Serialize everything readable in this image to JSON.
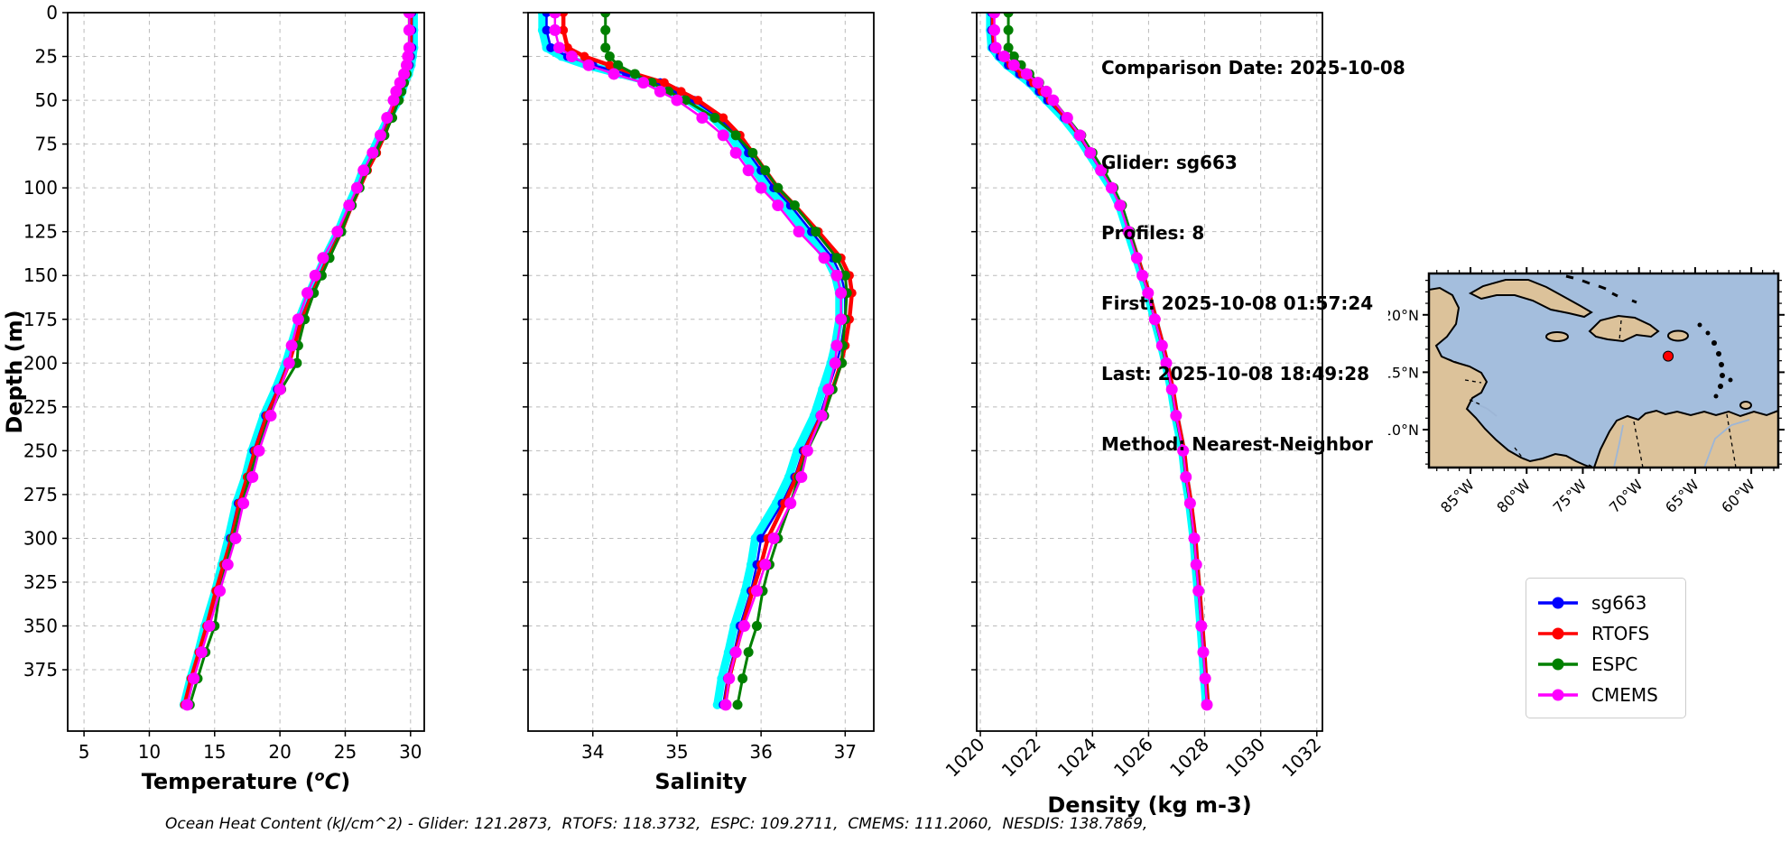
{
  "info_panel": {
    "comparison_date": "Comparison Date: 2025-10-08",
    "glider": "Glider: sg663",
    "profiles": "Profiles: 8",
    "first": "First: 2025-10-08 01:57:24",
    "last": "Last: 2025-10-08 18:49:28",
    "method": "Method: Nearest-Neighbor"
  },
  "caption": "Ocean Heat Content (kJ/cm^2) - Glider: 121.2873,  RTOFS: 118.3732,  ESPC: 109.2711,  CMEMS: 111.2060,  NESDIS: 138.7869,",
  "legend": {
    "items": [
      {
        "label": "sg663",
        "color": "#0000ff"
      },
      {
        "label": "RTOFS",
        "color": "#ff0000"
      },
      {
        "label": "ESPC",
        "color": "#008000"
      },
      {
        "label": "CMEMS",
        "color": "#ff00ff"
      }
    ]
  },
  "map": {
    "ocean_color": "#a4bedd",
    "land_color": "#dcc29a",
    "marker_color": "#ff0000",
    "extent": {
      "lon_min": -88.7,
      "lon_max": -57.6,
      "lat_min": 6.7,
      "lat_max": 23.6
    },
    "x_tick_lons": [
      -85,
      -80,
      -75,
      -70,
      -65,
      -60
    ],
    "x_tick_labels": [
      "85°W",
      "80°W",
      "75°W",
      "70°W",
      "65°W",
      "60°W"
    ],
    "y_tick_lats": [
      20,
      15,
      10
    ],
    "y_tick_labels": [
      "20°N",
      "15°N",
      "10°N"
    ],
    "marker_lon": -67.4,
    "marker_lat": 16.4
  },
  "chart_data": [
    {
      "type": "line",
      "id": "temperature",
      "xlabel_rich": [
        "Temperature (",
        "o",
        "C",
        ")"
      ],
      "xlabel": "Temperature (°C)",
      "ylabel": "Depth (m)",
      "xlim": [
        3.75,
        31.05
      ],
      "ylim": [
        0,
        410
      ],
      "y_inverted": true,
      "grid": true,
      "xticks": [
        5,
        10,
        15,
        20,
        25,
        30
      ],
      "yticks": [
        0,
        25,
        50,
        75,
        100,
        125,
        150,
        175,
        200,
        225,
        250,
        275,
        300,
        325,
        350,
        375
      ],
      "show_ytick_labels": true,
      "rotate_xtick_labels": false,
      "depths": [
        0,
        10,
        20,
        25,
        30,
        35,
        40,
        45,
        50,
        60,
        70,
        80,
        90,
        100,
        110,
        125,
        140,
        150,
        160,
        175,
        190,
        200,
        215,
        230,
        250,
        265,
        280,
        300,
        315,
        330,
        350,
        365,
        380,
        395
      ],
      "series": [
        {
          "name": "glider-raw",
          "color": "#00ffff",
          "lw": 9,
          "mr": 5,
          "in_legend": false,
          "values": [
            30.25,
            30.25,
            30.25,
            30.15,
            30.05,
            29.85,
            29.55,
            29.35,
            29.1,
            28.3,
            27.65,
            27.05,
            26.35,
            25.85,
            25.25,
            24.45,
            23.45,
            22.85,
            22.25,
            21.45,
            20.85,
            20.45,
            19.65,
            18.75,
            17.85,
            17.35,
            16.65,
            16.05,
            15.55,
            15.05,
            14.25,
            13.75,
            13.15,
            12.65
          ]
        },
        {
          "name": "sg663",
          "color": "#0000ff",
          "lw": 2.5,
          "mr": 5,
          "in_legend": true,
          "values": [
            30.1,
            30.1,
            30.1,
            30.0,
            29.9,
            29.7,
            29.4,
            29.2,
            29.0,
            28.4,
            27.8,
            27.2,
            26.5,
            26.0,
            25.4,
            24.6,
            23.6,
            23.0,
            22.4,
            21.6,
            21.0,
            20.6,
            19.8,
            18.9,
            18.0,
            17.5,
            16.8,
            16.2,
            15.7,
            15.2,
            14.4,
            13.9,
            13.3,
            12.8
          ]
        },
        {
          "name": "RTOFS",
          "color": "#ff0000",
          "lw": 4.5,
          "mr": 5,
          "in_legend": true,
          "values": [
            30.0,
            30.0,
            30.0,
            29.9,
            29.8,
            29.6,
            29.3,
            29.1,
            28.9,
            28.5,
            28.0,
            27.4,
            26.7,
            26.1,
            25.5,
            24.7,
            23.7,
            23.1,
            22.5,
            21.7,
            21.1,
            20.7,
            19.9,
            19.0,
            18.1,
            17.5,
            16.9,
            16.3,
            15.7,
            15.1,
            14.4,
            13.8,
            13.2,
            12.7
          ]
        },
        {
          "name": "ESPC",
          "color": "#008000",
          "lw": 3,
          "mr": 5.5,
          "in_legend": true,
          "values": [
            29.9,
            29.9,
            29.9,
            29.9,
            29.8,
            29.7,
            29.5,
            29.3,
            29.1,
            28.6,
            28.0,
            27.3,
            26.6,
            26.1,
            25.5,
            24.7,
            23.8,
            23.2,
            22.6,
            21.9,
            21.4,
            21.3,
            20.1,
            19.2,
            18.3,
            17.7,
            17.1,
            16.4,
            15.9,
            15.4,
            15.0,
            14.3,
            13.7,
            13.1
          ]
        },
        {
          "name": "CMEMS",
          "color": "#ff00ff",
          "lw": 2.5,
          "mr": 6.5,
          "in_legend": true,
          "values": [
            29.9,
            29.9,
            29.9,
            29.8,
            29.7,
            29.5,
            29.2,
            28.9,
            28.7,
            28.2,
            27.7,
            27.1,
            26.4,
            25.9,
            25.3,
            24.4,
            23.3,
            22.7,
            22.1,
            21.4,
            20.9,
            20.7,
            20.0,
            19.3,
            18.4,
            17.9,
            17.2,
            16.6,
            16.0,
            15.4,
            14.6,
            14.0,
            13.4,
            12.9
          ]
        }
      ]
    },
    {
      "type": "line",
      "id": "salinity",
      "xlabel": "Salinity",
      "ylabel": "",
      "xlim": [
        33.23,
        37.34
      ],
      "ylim": [
        0,
        410
      ],
      "y_inverted": true,
      "grid": true,
      "xticks": [
        34,
        35,
        36,
        37
      ],
      "yticks": [
        0,
        25,
        50,
        75,
        100,
        125,
        150,
        175,
        200,
        225,
        250,
        275,
        300,
        325,
        350,
        375
      ],
      "show_ytick_labels": false,
      "rotate_xtick_labels": false,
      "depths": [
        0,
        10,
        20,
        25,
        30,
        35,
        40,
        45,
        50,
        60,
        70,
        80,
        90,
        100,
        110,
        125,
        140,
        150,
        160,
        175,
        190,
        200,
        215,
        230,
        250,
        265,
        280,
        300,
        315,
        330,
        350,
        365,
        380,
        395
      ],
      "series": [
        {
          "name": "glider-raw",
          "color": "#00ffff",
          "lw": 9,
          "mr": 5,
          "in_legend": false,
          "values": [
            33.4,
            33.4,
            33.45,
            33.63,
            33.93,
            34.33,
            34.73,
            34.93,
            35.13,
            35.43,
            35.63,
            35.78,
            35.93,
            36.08,
            36.28,
            36.53,
            36.78,
            36.88,
            36.93,
            36.93,
            36.88,
            36.83,
            36.73,
            36.63,
            36.43,
            36.33,
            36.18,
            35.93,
            35.88,
            35.81,
            35.68,
            35.61,
            35.53,
            35.48
          ]
        },
        {
          "name": "sg663",
          "color": "#0000ff",
          "lw": 2.5,
          "mr": 5,
          "in_legend": true,
          "values": [
            33.45,
            33.45,
            33.5,
            33.7,
            34.0,
            34.4,
            34.8,
            35.0,
            35.2,
            35.5,
            35.7,
            35.85,
            36.0,
            36.15,
            36.35,
            36.6,
            36.85,
            36.95,
            37.0,
            37.0,
            36.95,
            36.9,
            36.8,
            36.7,
            36.5,
            36.4,
            36.25,
            36.0,
            35.95,
            35.88,
            35.75,
            35.68,
            35.6,
            35.55
          ]
        },
        {
          "name": "RTOFS",
          "color": "#ff0000",
          "lw": 4.5,
          "mr": 5,
          "in_legend": true,
          "values": [
            33.65,
            33.65,
            33.7,
            33.9,
            34.2,
            34.5,
            34.85,
            35.05,
            35.25,
            35.55,
            35.75,
            35.9,
            36.05,
            36.2,
            36.4,
            36.68,
            36.95,
            37.05,
            37.08,
            37.05,
            37.0,
            36.95,
            36.85,
            36.72,
            36.52,
            36.42,
            36.28,
            36.08,
            36.0,
            35.9,
            35.78,
            35.7,
            35.62,
            35.57
          ]
        },
        {
          "name": "ESPC",
          "color": "#008000",
          "lw": 3,
          "mr": 5.5,
          "in_legend": true,
          "values": [
            34.15,
            34.15,
            34.15,
            34.2,
            34.3,
            34.5,
            34.7,
            34.9,
            35.1,
            35.45,
            35.7,
            35.9,
            36.05,
            36.2,
            36.4,
            36.65,
            36.9,
            37.0,
            37.02,
            37.0,
            36.97,
            36.96,
            36.85,
            36.75,
            36.55,
            36.45,
            36.35,
            36.2,
            36.1,
            36.02,
            35.95,
            35.85,
            35.78,
            35.72
          ]
        },
        {
          "name": "CMEMS",
          "color": "#ff00ff",
          "lw": 2.5,
          "mr": 6.5,
          "in_legend": true,
          "values": [
            33.55,
            33.55,
            33.6,
            33.75,
            33.95,
            34.25,
            34.6,
            34.8,
            35.0,
            35.3,
            35.55,
            35.7,
            35.85,
            36.0,
            36.2,
            36.45,
            36.75,
            36.9,
            36.95,
            36.95,
            36.9,
            36.88,
            36.8,
            36.72,
            36.55,
            36.48,
            36.35,
            36.15,
            36.05,
            35.95,
            35.8,
            35.7,
            35.62,
            35.58
          ]
        }
      ]
    },
    {
      "type": "line",
      "id": "density",
      "xlabel": "Density (kg m-3)",
      "ylabel": "",
      "xlim": [
        1019.87,
        1032.2
      ],
      "ylim": [
        0,
        410
      ],
      "y_inverted": true,
      "grid": true,
      "xticks": [
        1020,
        1022,
        1024,
        1026,
        1028,
        1030,
        1032
      ],
      "yticks": [
        0,
        25,
        50,
        75,
        100,
        125,
        150,
        175,
        200,
        225,
        250,
        275,
        300,
        325,
        350,
        375
      ],
      "show_ytick_labels": false,
      "rotate_xtick_labels": true,
      "depths": [
        0,
        10,
        20,
        25,
        30,
        35,
        40,
        45,
        50,
        60,
        70,
        80,
        90,
        100,
        110,
        125,
        140,
        150,
        160,
        175,
        190,
        200,
        215,
        230,
        250,
        265,
        280,
        300,
        315,
        330,
        350,
        365,
        380,
        395
      ],
      "series": [
        {
          "name": "glider-raw",
          "color": "#00ffff",
          "lw": 9,
          "mr": 5,
          "in_legend": false,
          "values": [
            1020.35,
            1020.35,
            1020.4,
            1020.65,
            1020.95,
            1021.35,
            1021.75,
            1022.05,
            1022.35,
            1022.95,
            1023.45,
            1023.85,
            1024.25,
            1024.65,
            1024.95,
            1025.25,
            1025.55,
            1025.75,
            1025.95,
            1026.2,
            1026.45,
            1026.6,
            1026.8,
            1026.95,
            1027.2,
            1027.3,
            1027.45,
            1027.6,
            1027.67,
            1027.75,
            1027.85,
            1027.92,
            1027.98,
            1028.05
          ]
        },
        {
          "name": "sg663",
          "color": "#0000ff",
          "lw": 2.5,
          "mr": 5,
          "in_legend": true,
          "values": [
            1020.4,
            1020.4,
            1020.45,
            1020.7,
            1021.0,
            1021.4,
            1021.8,
            1022.1,
            1022.4,
            1023.0,
            1023.5,
            1023.9,
            1024.3,
            1024.7,
            1025.0,
            1025.3,
            1025.6,
            1025.8,
            1026.0,
            1026.25,
            1026.5,
            1026.65,
            1026.85,
            1027.0,
            1027.25,
            1027.35,
            1027.5,
            1027.65,
            1027.72,
            1027.8,
            1027.9,
            1027.97,
            1028.03,
            1028.1
          ]
        },
        {
          "name": "RTOFS",
          "color": "#ff0000",
          "lw": 4.5,
          "mr": 5,
          "in_legend": true,
          "values": [
            1020.45,
            1020.45,
            1020.5,
            1020.8,
            1021.1,
            1021.5,
            1021.9,
            1022.2,
            1022.5,
            1023.05,
            1023.55,
            1023.95,
            1024.35,
            1024.72,
            1025.02,
            1025.32,
            1025.62,
            1025.82,
            1026.02,
            1026.27,
            1026.52,
            1026.67,
            1026.87,
            1027.02,
            1027.27,
            1027.37,
            1027.52,
            1027.67,
            1027.74,
            1027.82,
            1027.92,
            1027.99,
            1028.05,
            1028.12
          ]
        },
        {
          "name": "ESPC",
          "color": "#008000",
          "lw": 3,
          "mr": 5.5,
          "in_legend": true,
          "values": [
            1021.0,
            1021.0,
            1021.0,
            1021.2,
            1021.45,
            1021.75,
            1022.1,
            1022.35,
            1022.6,
            1023.1,
            1023.6,
            1024.0,
            1024.4,
            1024.75,
            1025.05,
            1025.35,
            1025.6,
            1025.78,
            1025.98,
            1026.22,
            1026.47,
            1026.62,
            1026.82,
            1026.97,
            1027.22,
            1027.32,
            1027.47,
            1027.62,
            1027.7,
            1027.78,
            1027.88,
            1027.95,
            1028.02,
            1028.08
          ]
        },
        {
          "name": "CMEMS",
          "color": "#ff00ff",
          "lw": 2.5,
          "mr": 6.5,
          "in_legend": true,
          "values": [
            1020.5,
            1020.5,
            1020.55,
            1020.85,
            1021.2,
            1021.65,
            1022.05,
            1022.35,
            1022.6,
            1023.1,
            1023.55,
            1023.92,
            1024.3,
            1024.68,
            1024.98,
            1025.28,
            1025.58,
            1025.78,
            1025.98,
            1026.22,
            1026.48,
            1026.63,
            1026.83,
            1026.98,
            1027.23,
            1027.33,
            1027.48,
            1027.63,
            1027.7,
            1027.78,
            1027.88,
            1027.95,
            1028.02,
            1028.08
          ]
        }
      ]
    }
  ]
}
